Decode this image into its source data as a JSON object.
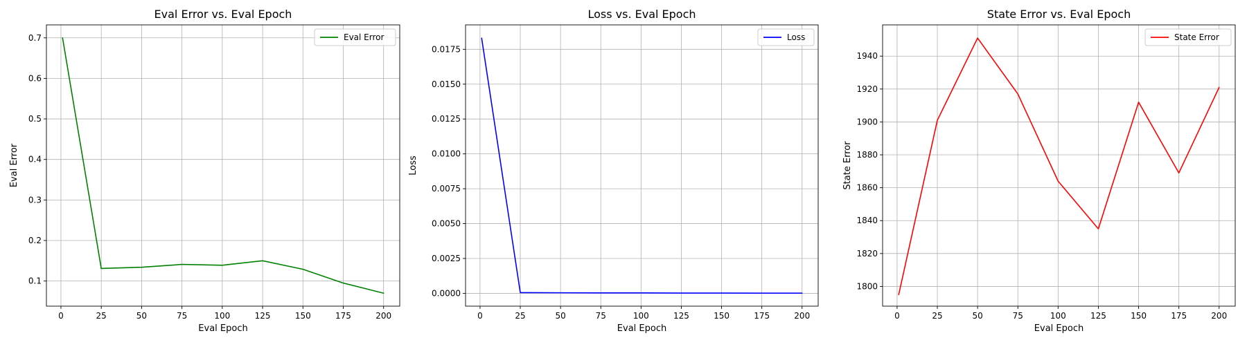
{
  "chart_data": [
    {
      "type": "line",
      "title": "Eval Error vs. Eval Epoch",
      "xlabel": "Eval Epoch",
      "ylabel": "Eval Error",
      "grid": true,
      "legend_position": "top-right",
      "xlim": [
        -9,
        210
      ],
      "ylim": [
        0.038,
        0.732
      ],
      "xticks": [
        0,
        25,
        50,
        75,
        100,
        125,
        150,
        175,
        200
      ],
      "yticks": [
        0.1,
        0.2,
        0.3,
        0.4,
        0.5,
        0.6,
        0.7
      ],
      "ytick_labels": [
        "0.1",
        "0.2",
        "0.3",
        "0.4",
        "0.5",
        "0.6",
        "0.7"
      ],
      "series": [
        {
          "name": "Eval Error",
          "color": "#008000",
          "x": [
            1,
            25,
            50,
            75,
            100,
            125,
            150,
            175,
            200
          ],
          "y": [
            0.7,
            0.131,
            0.134,
            0.141,
            0.139,
            0.15,
            0.129,
            0.095,
            0.07
          ]
        }
      ]
    },
    {
      "type": "line",
      "title": "Loss vs. Eval Epoch",
      "xlabel": "Eval Epoch",
      "ylabel": "Loss",
      "grid": true,
      "legend_position": "top-right",
      "xlim": [
        -9,
        210
      ],
      "ylim": [
        -0.00092,
        0.01925
      ],
      "xticks": [
        0,
        25,
        50,
        75,
        100,
        125,
        150,
        175,
        200
      ],
      "yticks": [
        0,
        0.0025,
        0.005,
        0.0075,
        0.01,
        0.0125,
        0.015,
        0.0175
      ],
      "ytick_labels": [
        "0.0000",
        "0.0025",
        "0.0050",
        "0.0075",
        "0.0100",
        "0.0125",
        "0.0150",
        "0.0175"
      ],
      "series": [
        {
          "name": "Loss",
          "color": "#0000ff",
          "x": [
            1,
            25,
            50,
            75,
            100,
            125,
            150,
            175,
            200
          ],
          "y": [
            0.0183,
            5e-05,
            4e-05,
            3e-05,
            3e-05,
            2e-05,
            2e-05,
            1e-05,
            1e-05
          ]
        }
      ]
    },
    {
      "type": "line",
      "title": "State Error vs. Eval Epoch",
      "xlabel": "Eval Epoch",
      "ylabel": "State Error",
      "grid": true,
      "legend_position": "top-right",
      "xlim": [
        -9,
        210
      ],
      "ylim": [
        1788,
        1959
      ],
      "xticks": [
        0,
        25,
        50,
        75,
        100,
        125,
        150,
        175,
        200
      ],
      "yticks": [
        1800,
        1820,
        1840,
        1860,
        1880,
        1900,
        1920,
        1940
      ],
      "ytick_labels": [
        "1800",
        "1820",
        "1840",
        "1860",
        "1880",
        "1900",
        "1920",
        "1940"
      ],
      "series": [
        {
          "name": "State Error",
          "color": "#ff0000",
          "x": [
            1,
            25,
            50,
            75,
            100,
            125,
            150,
            175,
            200
          ],
          "y": [
            1795,
            1901,
            1951,
            1917,
            1864,
            1835,
            1912,
            1869,
            1921
          ]
        }
      ]
    }
  ]
}
